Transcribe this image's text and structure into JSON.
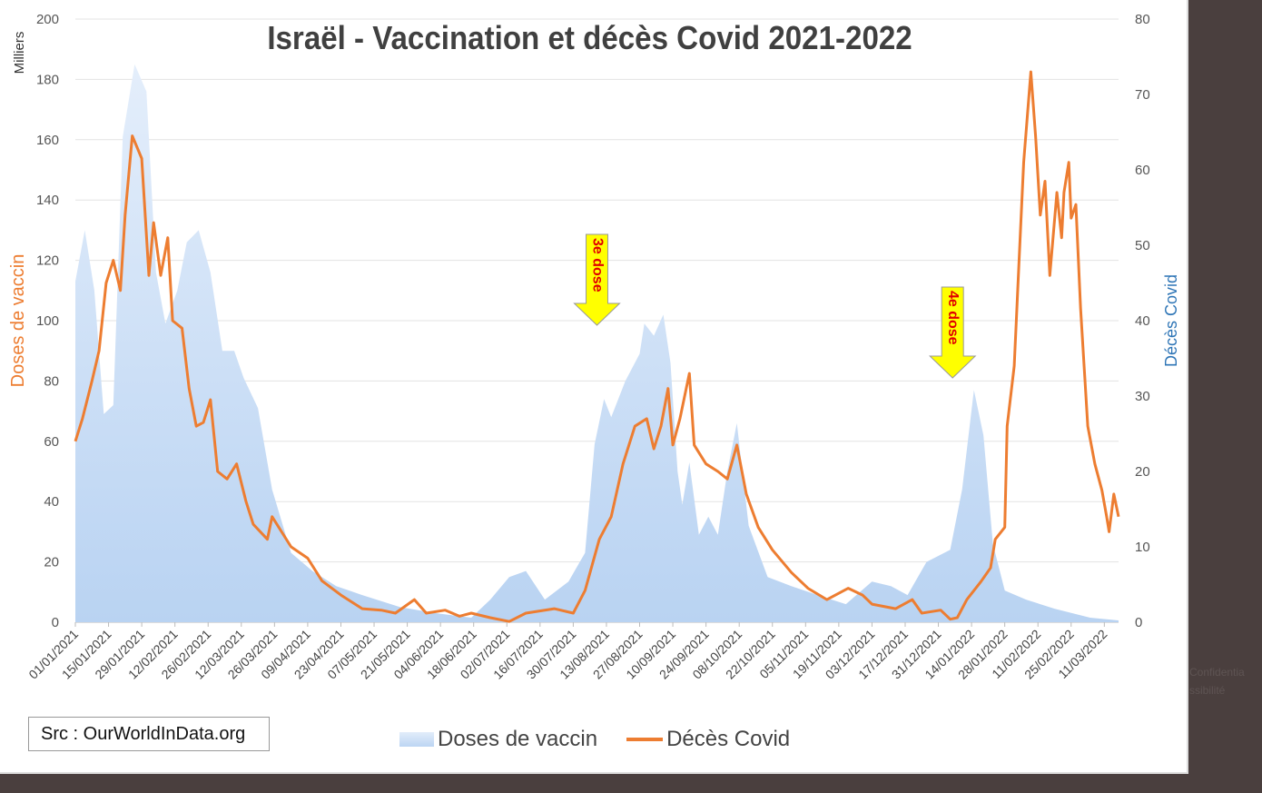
{
  "chart_data": {
    "type": "area+line",
    "title": "Israël - Vaccination et décès Covid 2021-2022",
    "y_left_unit": "Milliers",
    "y_left_label": "Doses de vaccin",
    "y_right_label": "Décès Covid",
    "y_left_range": [
      0,
      200
    ],
    "y_right_range": [
      0,
      80
    ],
    "y_left_ticks": [
      "0",
      "20",
      "40",
      "60",
      "80",
      "100",
      "120",
      "140",
      "160",
      "180",
      "200"
    ],
    "y_right_ticks": [
      "0",
      "10",
      "20",
      "30",
      "40",
      "50",
      "60",
      "70",
      "80"
    ],
    "x_start": "01/01/2021",
    "x_unit": "days since 01/01/2021",
    "x_range": [
      0,
      440
    ],
    "x_tick_labels": [
      "01/01/2021",
      "15/01/2021",
      "29/01/2021",
      "12/02/2021",
      "26/02/2021",
      "12/03/2021",
      "26/03/2021",
      "09/04/2021",
      "23/04/2021",
      "07/05/2021",
      "21/05/2021",
      "04/06/2021",
      "18/06/2021",
      "02/07/2021",
      "16/07/2021",
      "30/07/2021",
      "13/08/2021",
      "27/08/2021",
      "10/09/2021",
      "24/09/2021",
      "08/10/2021",
      "22/10/2021",
      "05/11/2021",
      "19/11/2021",
      "03/12/2021",
      "17/12/2021",
      "31/12/2021",
      "14/01/2022",
      "28/01/2022",
      "11/02/2022",
      "25/02/2022",
      "11/03/2022"
    ],
    "grid": true,
    "legend_position": "bottom",
    "series": [
      {
        "name": "Doses de vaccin",
        "type": "area",
        "axis": "left",
        "color": "#bcd5f3",
        "points": [
          [
            0,
            113
          ],
          [
            4,
            130
          ],
          [
            8,
            110
          ],
          [
            12,
            69
          ],
          [
            16,
            72
          ],
          [
            20,
            161
          ],
          [
            25,
            185
          ],
          [
            30,
            176
          ],
          [
            34,
            116
          ],
          [
            38,
            99
          ],
          [
            43,
            110
          ],
          [
            47,
            126
          ],
          [
            52,
            130
          ],
          [
            57,
            116
          ],
          [
            62,
            90
          ],
          [
            67,
            90
          ],
          [
            71,
            81
          ],
          [
            77,
            71
          ],
          [
            83,
            44
          ],
          [
            91,
            23
          ],
          [
            100,
            17
          ],
          [
            110,
            12
          ],
          [
            121,
            9
          ],
          [
            137,
            5
          ],
          [
            152,
            3
          ],
          [
            167,
            1.5
          ],
          [
            175,
            7.5
          ],
          [
            183,
            15
          ],
          [
            190,
            17
          ],
          [
            198,
            7.5
          ],
          [
            208,
            13.5
          ],
          [
            215,
            23
          ],
          [
            219,
            59
          ],
          [
            223,
            74
          ],
          [
            226,
            68
          ],
          [
            232,
            80
          ],
          [
            238,
            89
          ],
          [
            240,
            99
          ],
          [
            244,
            95
          ],
          [
            248,
            102
          ],
          [
            251,
            86
          ],
          [
            254,
            50
          ],
          [
            256,
            39
          ],
          [
            259,
            53
          ],
          [
            263,
            29
          ],
          [
            267,
            35
          ],
          [
            271,
            29
          ],
          [
            275,
            50
          ],
          [
            279,
            66
          ],
          [
            284,
            32
          ],
          [
            292,
            15
          ],
          [
            302,
            12
          ],
          [
            313,
            9
          ],
          [
            325,
            6
          ],
          [
            336,
            13.5
          ],
          [
            344,
            12
          ],
          [
            351,
            9
          ],
          [
            359,
            20
          ],
          [
            369,
            24
          ],
          [
            374,
            44
          ],
          [
            379,
            77
          ],
          [
            383,
            62
          ],
          [
            387,
            26
          ],
          [
            392,
            10.5
          ],
          [
            401,
            7.5
          ],
          [
            413,
            4.5
          ],
          [
            428,
            1.5
          ],
          [
            440,
            0.6
          ]
        ]
      },
      {
        "name": "Décès Covid",
        "type": "line",
        "axis": "right",
        "color": "#ed7d31",
        "points": [
          [
            0,
            24
          ],
          [
            3,
            27
          ],
          [
            7,
            32
          ],
          [
            10,
            36
          ],
          [
            13,
            45
          ],
          [
            16,
            48
          ],
          [
            19,
            44
          ],
          [
            21,
            54
          ],
          [
            24,
            64.5
          ],
          [
            28,
            61.5
          ],
          [
            31,
            46
          ],
          [
            33,
            53
          ],
          [
            36,
            46
          ],
          [
            39,
            51
          ],
          [
            41,
            40
          ],
          [
            45,
            39
          ],
          [
            48,
            31
          ],
          [
            51,
            26
          ],
          [
            54,
            26.5
          ],
          [
            57,
            29.5
          ],
          [
            60,
            20
          ],
          [
            64,
            19
          ],
          [
            68,
            21
          ],
          [
            72,
            16
          ],
          [
            75,
            13
          ],
          [
            81,
            11
          ],
          [
            83,
            14
          ],
          [
            91,
            10
          ],
          [
            98,
            8.5
          ],
          [
            104,
            5.5
          ],
          [
            112,
            3.6
          ],
          [
            121,
            1.8
          ],
          [
            129,
            1.6
          ],
          [
            135,
            1.2
          ],
          [
            143,
            3
          ],
          [
            148,
            1.2
          ],
          [
            156,
            1.6
          ],
          [
            162,
            0.8
          ],
          [
            167,
            1.2
          ],
          [
            175,
            0.6
          ],
          [
            183,
            0.1
          ],
          [
            190,
            1.2
          ],
          [
            202,
            1.8
          ],
          [
            210,
            1.2
          ],
          [
            215,
            4.2
          ],
          [
            221,
            11
          ],
          [
            226,
            14
          ],
          [
            231,
            21
          ],
          [
            236,
            26
          ],
          [
            241,
            27
          ],
          [
            244,
            23
          ],
          [
            247,
            26
          ],
          [
            250,
            31
          ],
          [
            252,
            23.5
          ],
          [
            255,
            27
          ],
          [
            259,
            33
          ],
          [
            261,
            23.5
          ],
          [
            266,
            21
          ],
          [
            271,
            20
          ],
          [
            275,
            19
          ],
          [
            279,
            23.5
          ],
          [
            283,
            17
          ],
          [
            288,
            12.6
          ],
          [
            294,
            9.6
          ],
          [
            302,
            6.6
          ],
          [
            309,
            4.5
          ],
          [
            317,
            3
          ],
          [
            326,
            4.5
          ],
          [
            332,
            3.6
          ],
          [
            336,
            2.4
          ],
          [
            346,
            1.8
          ],
          [
            353,
            3
          ],
          [
            357,
            1.2
          ],
          [
            365,
            1.6
          ],
          [
            369,
            0.4
          ],
          [
            372,
            0.6
          ],
          [
            376,
            3
          ],
          [
            382,
            5.4
          ],
          [
            386,
            7.2
          ],
          [
            388,
            11
          ],
          [
            392,
            12.6
          ],
          [
            393,
            26
          ],
          [
            396,
            34
          ],
          [
            398,
            47.6
          ],
          [
            400,
            61
          ],
          [
            403,
            73
          ],
          [
            405,
            64.5
          ],
          [
            407,
            54
          ],
          [
            409,
            58.5
          ],
          [
            411,
            46
          ],
          [
            414,
            57
          ],
          [
            416,
            51
          ],
          [
            417,
            57
          ],
          [
            419,
            61
          ],
          [
            420,
            53.6
          ],
          [
            422,
            55.4
          ],
          [
            424,
            41.6
          ],
          [
            427,
            26
          ],
          [
            430,
            21
          ],
          [
            433,
            17.5
          ],
          [
            435,
            14
          ],
          [
            436,
            12
          ],
          [
            438,
            17
          ],
          [
            440,
            14
          ]
        ]
      }
    ],
    "annotations": [
      {
        "label": "3e dose",
        "day": 220
      },
      {
        "label": "4e dose",
        "day": 370
      }
    ],
    "source_note": "Src : OurWorldInData.org"
  },
  "side_text": [
    "Confidentia",
    "ssibilité"
  ]
}
